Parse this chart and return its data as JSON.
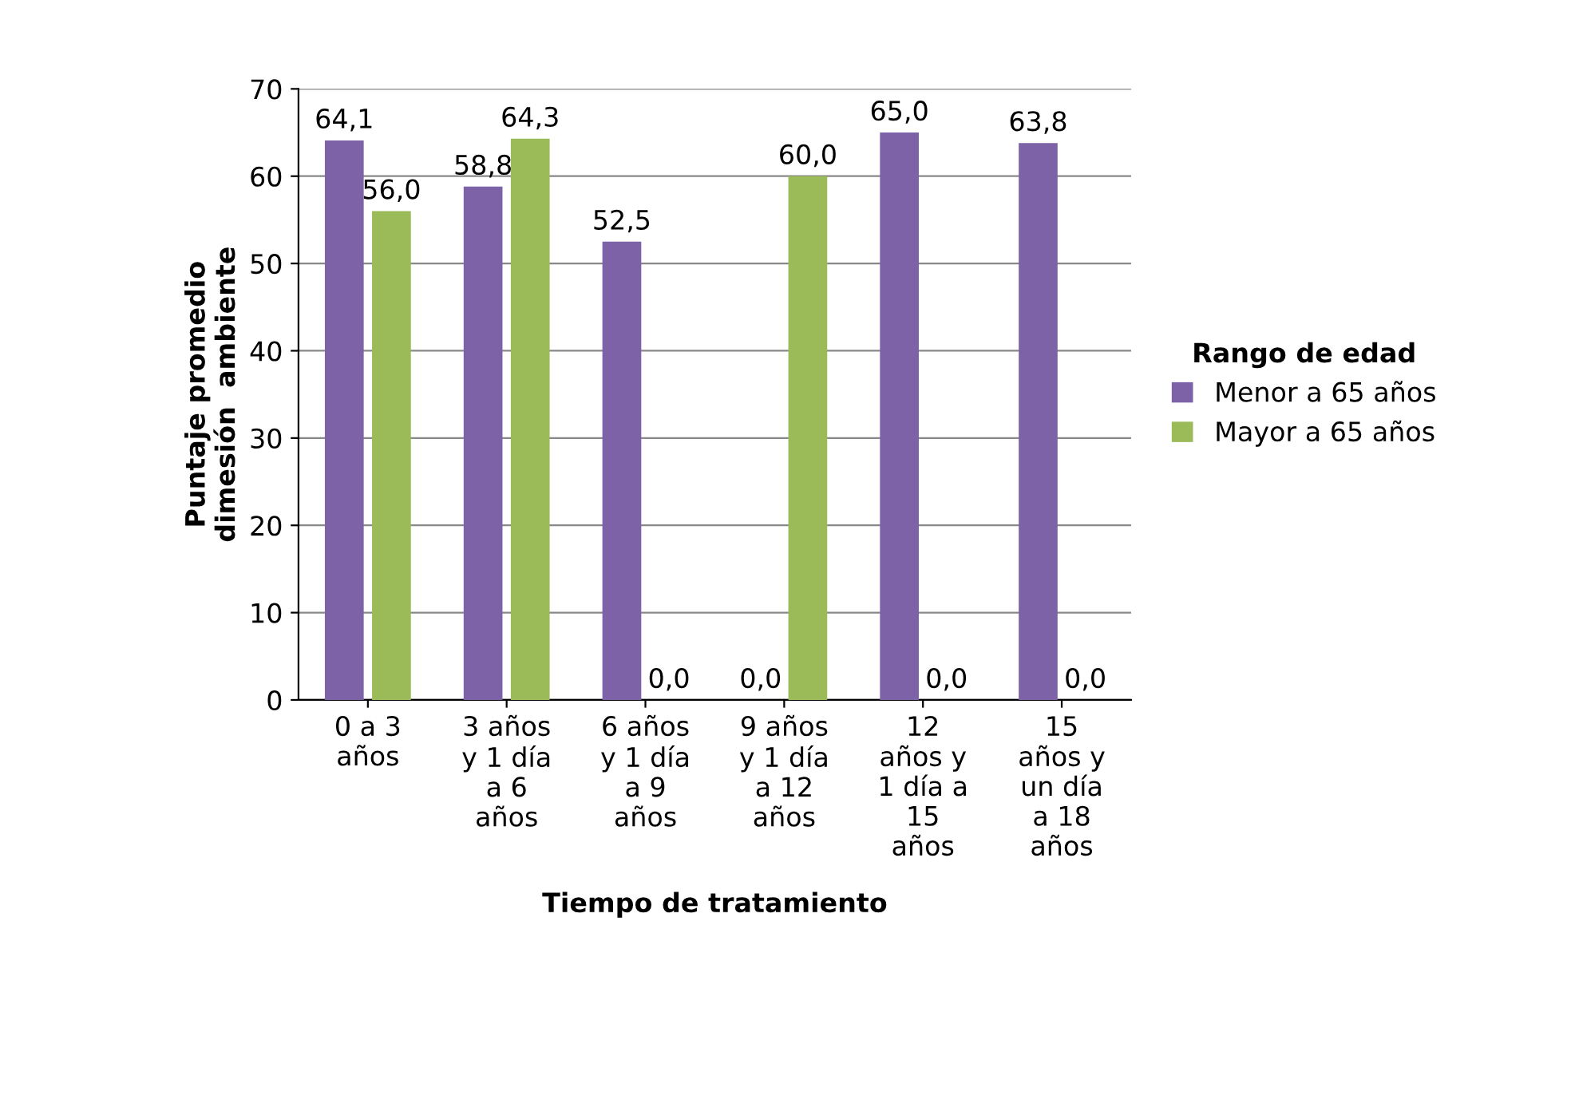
{
  "chart_data": {
    "type": "bar",
    "xlabel": "Tiempo de tratamiento",
    "ylabel": "Puntaje promedio\ndimesión  ambiente",
    "legend_title": "Rango de edad",
    "categories": [
      "0 a 3\naños",
      "3 años\ny 1 día\na 6\naños",
      "6 años\ny 1 día\na 9\naños",
      "9 años\ny 1 día\na 12\naños",
      "12\naños y\n1 día a\n15\naños",
      "15\naños y\nun día\na 18\naños"
    ],
    "series": [
      {
        "name": "Menor a 65 años",
        "color": "#7e62a8",
        "values": [
          64.1,
          58.8,
          52.5,
          0.0,
          65.0,
          63.8
        ],
        "value_labels": [
          "64,1",
          "58,8",
          "52,5",
          "0,0",
          "65,0",
          "63,8"
        ]
      },
      {
        "name": "Mayor a 65 años",
        "color": "#9bbb59",
        "values": [
          56.0,
          64.3,
          0.0,
          60.0,
          0.0,
          0.0
        ],
        "value_labels": [
          "56,0",
          "64,3",
          "0,0",
          "60,0",
          "0,0",
          "0,0"
        ]
      }
    ],
    "ylim": [
      0,
      70
    ],
    "yticks": [
      0,
      10,
      20,
      30,
      40,
      50,
      60,
      70
    ],
    "grid": "y",
    "legend": "right"
  }
}
